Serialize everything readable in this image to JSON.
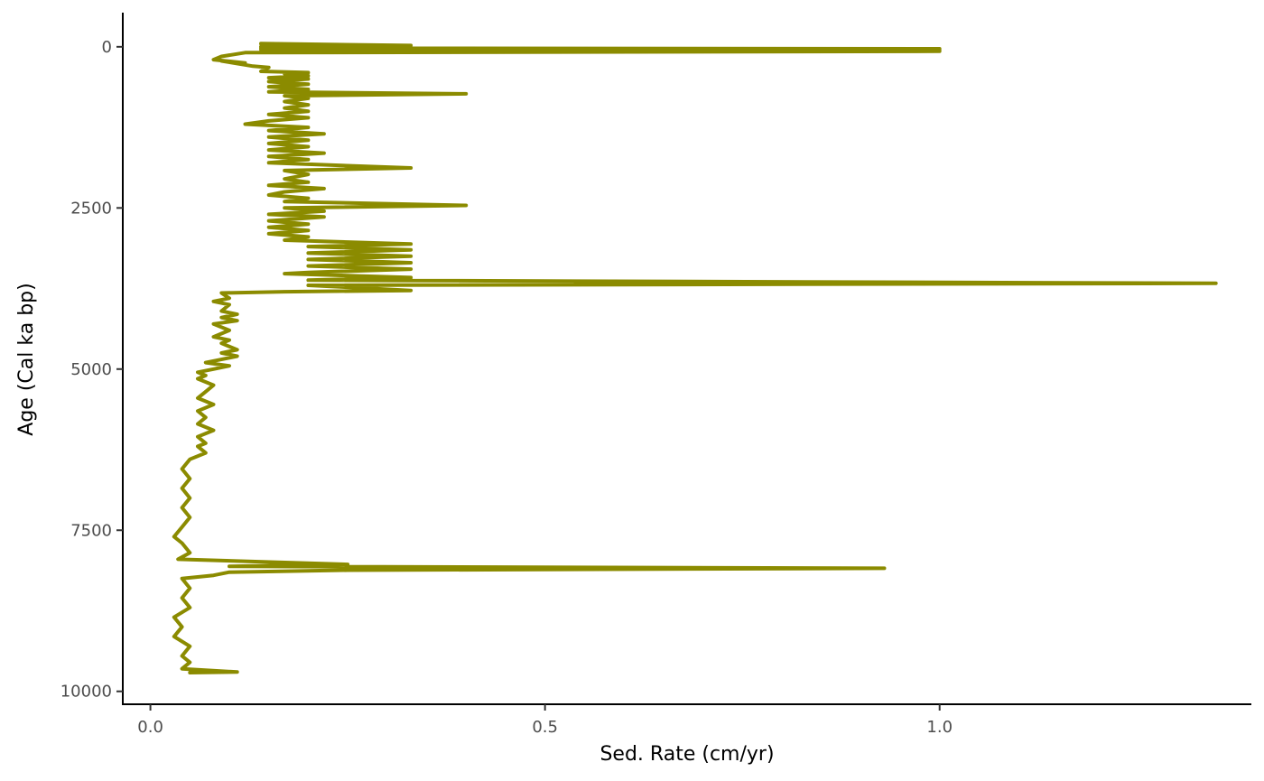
{
  "chart_data": {
    "type": "line",
    "title": "",
    "xlabel": "Sed. Rate (cm/yr)",
    "ylabel": "Age (Cal ka bp)",
    "xlim": [
      -0.035,
      1.395
    ],
    "ylim": [
      -530,
      10200
    ],
    "y_reversed": true,
    "x_ticks": [
      0.0,
      0.5,
      1.0
    ],
    "x_tick_labels": [
      "0.0",
      "0.5",
      "1.0"
    ],
    "y_ticks": [
      0,
      2500,
      5000,
      7500,
      10000
    ],
    "y_tick_labels": [
      "0",
      "2500",
      "5000",
      "7500",
      "10000"
    ],
    "grid": false,
    "legend": "none",
    "color": "#8b8b00",
    "series": [
      {
        "name": "",
        "points": [
          [
            0.14,
            -50
          ],
          [
            0.33,
            -20
          ],
          [
            0.14,
            0
          ],
          [
            0.33,
            10
          ],
          [
            0.14,
            20
          ],
          [
            1.0,
            30
          ],
          [
            0.14,
            40
          ],
          [
            1.0,
            50
          ],
          [
            0.15,
            60
          ],
          [
            1.0,
            70
          ],
          [
            0.12,
            90
          ],
          [
            0.09,
            150
          ],
          [
            0.08,
            200
          ],
          [
            0.12,
            250
          ],
          [
            0.09,
            220
          ],
          [
            0.13,
            300
          ],
          [
            0.15,
            320
          ],
          [
            0.14,
            380
          ],
          [
            0.2,
            400
          ],
          [
            0.17,
            420
          ],
          [
            0.2,
            450
          ],
          [
            0.15,
            480
          ],
          [
            0.2,
            500
          ],
          [
            0.15,
            540
          ],
          [
            0.2,
            580
          ],
          [
            0.15,
            620
          ],
          [
            0.2,
            660
          ],
          [
            0.15,
            700
          ],
          [
            0.4,
            730
          ],
          [
            0.17,
            760
          ],
          [
            0.2,
            800
          ],
          [
            0.17,
            850
          ],
          [
            0.2,
            900
          ],
          [
            0.17,
            950
          ],
          [
            0.2,
            1000
          ],
          [
            0.15,
            1050
          ],
          [
            0.2,
            1100
          ],
          [
            0.15,
            1150
          ],
          [
            0.12,
            1200
          ],
          [
            0.2,
            1250
          ],
          [
            0.15,
            1300
          ],
          [
            0.22,
            1350
          ],
          [
            0.15,
            1400
          ],
          [
            0.2,
            1450
          ],
          [
            0.15,
            1500
          ],
          [
            0.2,
            1550
          ],
          [
            0.15,
            1600
          ],
          [
            0.22,
            1650
          ],
          [
            0.15,
            1700
          ],
          [
            0.2,
            1750
          ],
          [
            0.15,
            1800
          ],
          [
            0.33,
            1880
          ],
          [
            0.17,
            1920
          ],
          [
            0.2,
            1980
          ],
          [
            0.17,
            2050
          ],
          [
            0.2,
            2100
          ],
          [
            0.15,
            2150
          ],
          [
            0.22,
            2200
          ],
          [
            0.17,
            2250
          ],
          [
            0.15,
            2300
          ],
          [
            0.2,
            2350
          ],
          [
            0.17,
            2400
          ],
          [
            0.4,
            2460
          ],
          [
            0.17,
            2500
          ],
          [
            0.22,
            2550
          ],
          [
            0.15,
            2600
          ],
          [
            0.22,
            2640
          ],
          [
            0.15,
            2700
          ],
          [
            0.2,
            2750
          ],
          [
            0.15,
            2800
          ],
          [
            0.2,
            2850
          ],
          [
            0.15,
            2900
          ],
          [
            0.2,
            2950
          ],
          [
            0.17,
            3000
          ],
          [
            0.33,
            3060
          ],
          [
            0.2,
            3100
          ],
          [
            0.33,
            3150
          ],
          [
            0.2,
            3200
          ],
          [
            0.33,
            3250
          ],
          [
            0.2,
            3300
          ],
          [
            0.33,
            3350
          ],
          [
            0.2,
            3400
          ],
          [
            0.33,
            3450
          ],
          [
            0.2,
            3500
          ],
          [
            0.17,
            3520
          ],
          [
            0.33,
            3580
          ],
          [
            0.2,
            3620
          ],
          [
            1.35,
            3670
          ],
          [
            0.2,
            3700
          ],
          [
            0.33,
            3780
          ],
          [
            0.17,
            3800
          ],
          [
            0.09,
            3820
          ],
          [
            0.1,
            3900
          ],
          [
            0.08,
            3950
          ],
          [
            0.1,
            4000
          ],
          [
            0.09,
            4100
          ],
          [
            0.11,
            4150
          ],
          [
            0.09,
            4200
          ],
          [
            0.11,
            4250
          ],
          [
            0.08,
            4300
          ],
          [
            0.1,
            4400
          ],
          [
            0.08,
            4500
          ],
          [
            0.1,
            4550
          ],
          [
            0.09,
            4600
          ],
          [
            0.11,
            4700
          ],
          [
            0.09,
            4750
          ],
          [
            0.11,
            4800
          ],
          [
            0.09,
            4850
          ],
          [
            0.07,
            4900
          ],
          [
            0.1,
            4950
          ],
          [
            0.08,
            5000
          ],
          [
            0.06,
            5050
          ],
          [
            0.07,
            5100
          ],
          [
            0.06,
            5150
          ],
          [
            0.08,
            5250
          ],
          [
            0.07,
            5350
          ],
          [
            0.06,
            5450
          ],
          [
            0.08,
            5550
          ],
          [
            0.06,
            5650
          ],
          [
            0.07,
            5750
          ],
          [
            0.06,
            5850
          ],
          [
            0.08,
            5950
          ],
          [
            0.06,
            6050
          ],
          [
            0.07,
            6150
          ],
          [
            0.06,
            6200
          ],
          [
            0.07,
            6300
          ],
          [
            0.05,
            6400
          ],
          [
            0.04,
            6550
          ],
          [
            0.05,
            6700
          ],
          [
            0.04,
            6850
          ],
          [
            0.05,
            7000
          ],
          [
            0.04,
            7150
          ],
          [
            0.05,
            7300
          ],
          [
            0.04,
            7450
          ],
          [
            0.03,
            7600
          ],
          [
            0.04,
            7700
          ],
          [
            0.05,
            7850
          ],
          [
            0.035,
            7950
          ],
          [
            0.25,
            8030
          ],
          [
            0.1,
            8060
          ],
          [
            0.93,
            8090
          ],
          [
            0.25,
            8120
          ],
          [
            0.1,
            8150
          ],
          [
            0.08,
            8200
          ],
          [
            0.04,
            8250
          ],
          [
            0.05,
            8400
          ],
          [
            0.04,
            8550
          ],
          [
            0.05,
            8700
          ],
          [
            0.03,
            8850
          ],
          [
            0.04,
            9000
          ],
          [
            0.03,
            9150
          ],
          [
            0.05,
            9300
          ],
          [
            0.04,
            9450
          ],
          [
            0.05,
            9550
          ],
          [
            0.04,
            9650
          ],
          [
            0.11,
            9700
          ],
          [
            0.05,
            9710
          ]
        ]
      }
    ]
  }
}
